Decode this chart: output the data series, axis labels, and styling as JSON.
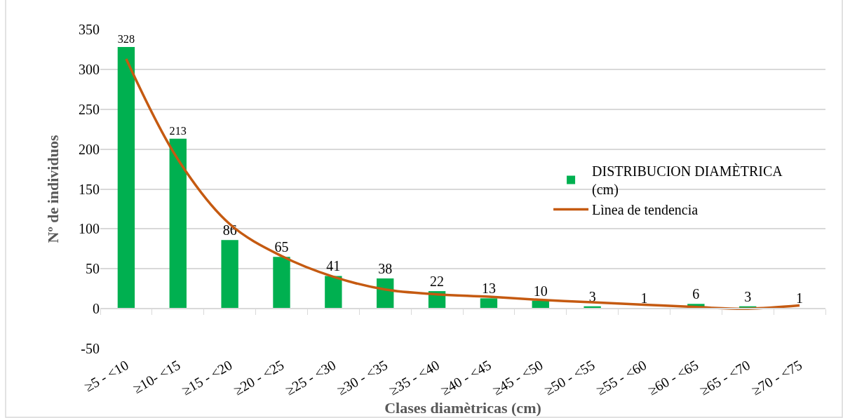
{
  "chart_data": {
    "type": "bar",
    "xlabel": "Clases diamètricas (cm)",
    "ylabel": "Nº de individuos",
    "categories": [
      "≥5 - <10",
      "≥10- <15",
      "≥15 - <20",
      "≥20 - <25",
      "≥25 - <30",
      "≥30 - <35",
      "≥35 - <40",
      "≥40 - <45",
      "≥45 - <50",
      "≥50 - <55",
      "≥55 - <60",
      "≥60 - <65",
      "≥65 - <70",
      "≥70 - <75"
    ],
    "series": [
      {
        "name": "DISTRIBUCION DIAMÈTRICA (cm)",
        "color": "#00b050",
        "values": [
          328,
          213,
          86,
          65,
          41,
          38,
          22,
          13,
          10,
          3,
          1,
          6,
          3,
          1
        ],
        "data_labels": true
      },
      {
        "name": "Lìnea de tendencia",
        "type": "line",
        "color": "#c55a11",
        "line_style": "solid",
        "x": [
          "≥5 - <10",
          "≥10- <15",
          "≥15 - <20",
          "≥20 - <25",
          "≥25 - <30",
          "≥30 - <35",
          "≥35 - <40",
          "≥40 - <45",
          "≥45 - <50",
          "≥50 - <55",
          "≥55 - <60",
          "≥60 - <65",
          "≥65 - <70",
          "≥70 - <75"
        ],
        "values": [
          313,
          187,
          106,
          66,
          40,
          24,
          18,
          15,
          11,
          8,
          5,
          2,
          0,
          4
        ]
      }
    ],
    "ylim": [
      -50,
      350
    ],
    "yticks": [
      -50,
      0,
      50,
      100,
      150,
      200,
      250,
      300,
      350
    ],
    "grid": "y",
    "legend": "right",
    "marker": "none"
  }
}
